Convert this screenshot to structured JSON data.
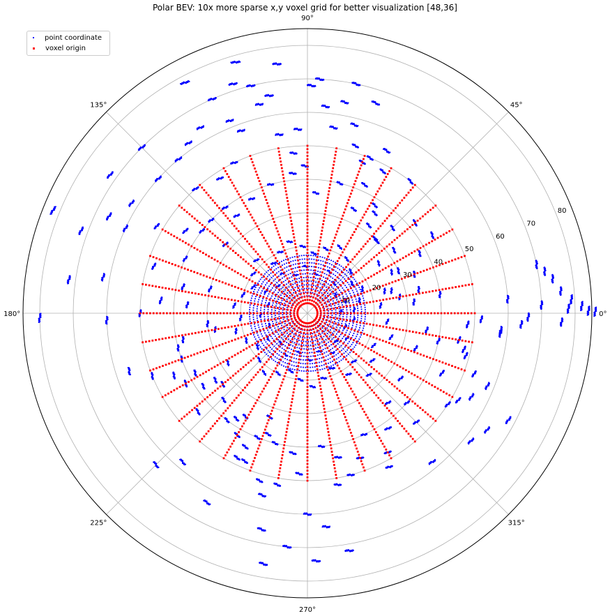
{
  "chart_data": {
    "type": "scatter",
    "projection": "polar",
    "title": "Polar BEV: 10x more sparse x,y voxel grid for better visualization [48,36]",
    "angle_ticks": [
      "0°",
      "45°",
      "90°",
      "135°",
      "180°",
      "225°",
      "270°",
      "315°"
    ],
    "angle_tick_values": [
      0,
      45,
      90,
      135,
      180,
      225,
      270,
      315
    ],
    "radial_ticks": [
      "10",
      "20",
      "30",
      "40",
      "50",
      "60",
      "70",
      "80"
    ],
    "radial_tick_values": [
      10,
      20,
      30,
      40,
      50,
      60,
      70,
      80
    ],
    "rlim": [
      0,
      85
    ],
    "radial_label_angle_deg": 22.5,
    "grid": true,
    "legend": {
      "position": "upper-left"
    },
    "colors": {
      "point": "#0000ff",
      "voxel": "#ff0000",
      "grid": "#b0b0b0",
      "frame": "#000000"
    },
    "series": [
      {
        "name": "point coordinate",
        "marker": "dot",
        "color": "#0000ff",
        "points": [
          [
            0.3,
            86
          ],
          [
            0.5,
            84
          ],
          [
            1.5,
            82
          ],
          [
            3,
            79
          ],
          [
            5,
            76
          ],
          [
            8,
            74
          ],
          [
            10,
            72
          ],
          [
            12,
            70
          ],
          [
            -2,
            76
          ],
          [
            -3,
            64
          ],
          [
            -5,
            58
          ],
          [
            -10,
            46
          ],
          [
            -13,
            48
          ],
          [
            -15,
            49
          ],
          [
            -20,
            53
          ],
          [
            -22,
            58
          ],
          [
            -27,
            55
          ],
          [
            -28,
            68
          ],
          [
            -30,
            52
          ],
          [
            -33,
            50
          ],
          [
            -33,
            64
          ],
          [
            -38,
            62
          ],
          [
            -45,
            26
          ],
          [
            -45,
            46
          ],
          [
            -50,
            58
          ],
          [
            -60,
            48
          ],
          [
            -62,
            52
          ],
          [
            -75,
            50
          ],
          [
            -80,
            52
          ],
          [
            -80,
            72
          ],
          [
            -85,
            64
          ],
          [
            -88,
            74
          ],
          [
            -90,
            60
          ],
          [
            -93,
            48
          ],
          [
            -95,
            70
          ],
          [
            -100,
            52
          ],
          [
            -100,
            76
          ],
          [
            -102,
            66
          ],
          [
            -104,
            56
          ],
          [
            -106,
            52
          ],
          [
            -108,
            38
          ],
          [
            -110,
            33
          ],
          [
            -113,
            48
          ],
          [
            -115,
            44
          ],
          [
            -116,
            48
          ],
          [
            -118,
            64
          ],
          [
            -120,
            42
          ],
          [
            -121,
            36
          ],
          [
            -127,
            40
          ],
          [
            -130,
            58
          ],
          [
            -135,
            64
          ],
          [
            -138,
            44
          ],
          [
            -140,
            33
          ],
          [
            -145,
            38
          ],
          [
            -148,
            28
          ],
          [
            -150,
            42
          ],
          [
            -152,
            38
          ],
          [
            -155,
            44
          ],
          [
            -158,
            50
          ],
          [
            -162,
            56
          ],
          [
            -165,
            40
          ],
          [
            -170,
            28
          ],
          [
            -174,
            30
          ],
          [
            -178,
            60
          ],
          [
            -179,
            80
          ],
          [
            180,
            50
          ],
          [
            175,
            44
          ],
          [
            172,
            72
          ],
          [
            170,
            62
          ],
          [
            166,
            30
          ],
          [
            163,
            48
          ],
          [
            160,
            72
          ],
          [
            158,
            82
          ],
          [
            155,
            60
          ],
          [
            154,
            66
          ],
          [
            150,
            52
          ],
          [
            148,
            62
          ],
          [
            145,
            72
          ],
          [
            142,
            40
          ],
          [
            140,
            32
          ],
          [
            138,
            60
          ],
          [
            135,
            70
          ],
          [
            132,
            50
          ],
          [
            130,
            60
          ],
          [
            128,
            40
          ],
          [
            125,
            62
          ],
          [
            123,
            48
          ],
          [
            120,
            64
          ],
          [
            118,
            78
          ],
          [
            116,
            50
          ],
          [
            114,
            70
          ],
          [
            112,
            62
          ],
          [
            110,
            58
          ],
          [
            108,
            72
          ],
          [
            106,
            78
          ],
          [
            104,
            70
          ],
          [
            103,
            64
          ],
          [
            100,
            66
          ],
          [
            99,
            54
          ],
          [
            97,
            75
          ],
          [
            95,
            48
          ],
          [
            93,
            55
          ],
          [
            91,
            44
          ],
          [
            89,
            68
          ],
          [
            87,
            70
          ],
          [
            85,
            62
          ],
          [
            82,
            56
          ],
          [
            80,
            64
          ],
          [
            78,
            70
          ],
          [
            76,
            58
          ],
          [
            74,
            52
          ],
          [
            72,
            66
          ],
          [
            70,
            48
          ],
          [
            68,
            50
          ],
          [
            66,
            42
          ],
          [
            64,
            54
          ],
          [
            62,
            48
          ],
          [
            58,
            38
          ],
          [
            55,
            32
          ],
          [
            52,
            50
          ],
          [
            48,
            30
          ],
          [
            45,
            36
          ],
          [
            40,
            42
          ],
          [
            35,
            26
          ],
          [
            32,
            44
          ],
          [
            28,
            38
          ],
          [
            25,
            30
          ],
          [
            20,
            34
          ],
          [
            15,
            26
          ],
          [
            12,
            34
          ],
          [
            10,
            28
          ],
          [
            8,
            40
          ],
          [
            6,
            32
          ],
          [
            4,
            60
          ],
          [
            2,
            70
          ],
          [
            1,
            78
          ],
          [
            -1,
            66
          ],
          [
            -2,
            52
          ],
          [
            -4,
            48
          ],
          [
            -6,
            58
          ],
          [
            -8,
            36
          ],
          [
            -12,
            40
          ],
          [
            -18,
            34
          ],
          [
            -24,
            44
          ],
          [
            -35,
            34
          ],
          [
            -42,
            40
          ],
          [
            -48,
            36
          ],
          [
            -55,
            42
          ],
          [
            -65,
            40
          ],
          [
            -70,
            46
          ],
          [
            -78,
            44
          ],
          [
            -84,
            40
          ],
          [
            -96,
            42
          ],
          [
            -104,
            40
          ],
          [
            -112,
            40
          ],
          [
            -124,
            38
          ],
          [
            -134,
            36
          ],
          [
            -144,
            34
          ],
          [
            -160,
            40
          ],
          [
            -168,
            38
          ],
          [
            176,
            36
          ],
          [
            168,
            38
          ],
          [
            156,
            40
          ],
          [
            146,
            44
          ],
          [
            136,
            40
          ],
          [
            126,
            36
          ],
          [
            116,
            38
          ],
          [
            106,
            40
          ],
          [
            96,
            42
          ],
          [
            86,
            36
          ],
          [
            76,
            40
          ],
          [
            66,
            34
          ],
          [
            56,
            36
          ],
          [
            46,
            30
          ],
          [
            36,
            32
          ],
          [
            26,
            28
          ],
          [
            16,
            24
          ],
          [
            6,
            22
          ],
          [
            -6,
            24
          ],
          [
            -16,
            26
          ],
          [
            -26,
            22
          ],
          [
            -36,
            24
          ],
          [
            -46,
            20
          ],
          [
            -56,
            22
          ],
          [
            -66,
            18
          ],
          [
            -76,
            20
          ],
          [
            -86,
            22
          ],
          [
            -96,
            20
          ],
          [
            -106,
            18
          ],
          [
            -116,
            20
          ],
          [
            -126,
            22
          ],
          [
            -136,
            20
          ],
          [
            -146,
            18
          ],
          [
            -156,
            20
          ],
          [
            -166,
            22
          ],
          [
            -176,
            20
          ],
          [
            174,
            22
          ],
          [
            164,
            20
          ],
          [
            154,
            18
          ],
          [
            144,
            20
          ],
          [
            134,
            22
          ],
          [
            124,
            18
          ],
          [
            114,
            20
          ],
          [
            104,
            22
          ],
          [
            94,
            20
          ],
          [
            84,
            18
          ],
          [
            74,
            20
          ],
          [
            64,
            22
          ],
          [
            54,
            20
          ],
          [
            44,
            18
          ],
          [
            34,
            16
          ],
          [
            24,
            18
          ],
          [
            14,
            16
          ],
          [
            4,
            14
          ],
          [
            -8,
            14
          ],
          [
            -20,
            12
          ],
          [
            -32,
            14
          ],
          [
            -44,
            12
          ],
          [
            -58,
            14
          ],
          [
            -72,
            12
          ],
          [
            -88,
            14
          ],
          [
            -102,
            12
          ],
          [
            -118,
            14
          ],
          [
            -132,
            12
          ],
          [
            -148,
            14
          ],
          [
            -162,
            12
          ],
          [
            -178,
            14
          ],
          [
            168,
            12
          ],
          [
            152,
            14
          ],
          [
            138,
            12
          ],
          [
            122,
            14
          ],
          [
            108,
            12
          ],
          [
            92,
            14
          ],
          [
            78,
            12
          ],
          [
            62,
            14
          ],
          [
            48,
            12
          ],
          [
            32,
            10
          ],
          [
            18,
            12
          ],
          [
            2,
            10
          ]
        ]
      },
      {
        "name": "voxel origin",
        "marker": "square",
        "color": "#ff0000",
        "angular_bins": 36,
        "radial_bins": 48,
        "r_range": [
          3,
          50
        ]
      }
    ]
  }
}
